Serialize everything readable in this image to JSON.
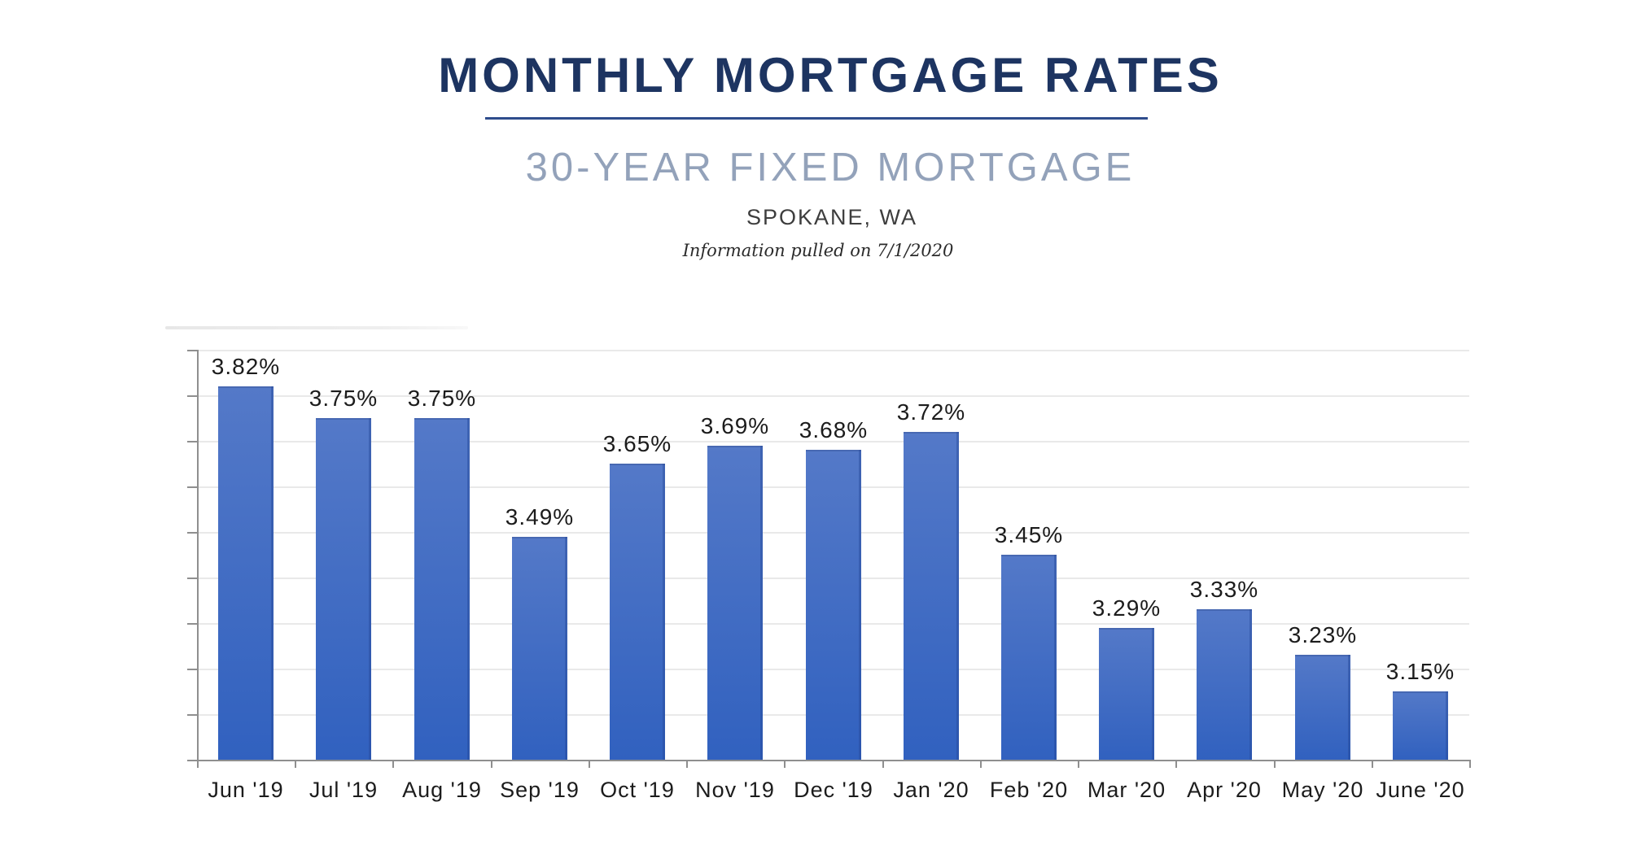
{
  "header": {
    "title": "MONTHLY MORTGAGE RATES",
    "subtitle": "30-YEAR FIXED MORTGAGE",
    "location": "SPOKANE, WA",
    "note": "Information pulled on 7/1/2020"
  },
  "colors": {
    "title_navy": "#1d3461",
    "underline_blue": "#2e4c8c",
    "subtitle_gray_blue": "#93a2ba",
    "location_dark": "#3d3d3d",
    "note_dark": "#2b2b2b",
    "bar_gradient_top": "#5479c8",
    "bar_gradient_bottom": "#3161bf",
    "bar_edge": "#2d59b2",
    "axis_gray": "#8f8f8f",
    "gridline_gray": "#e9e9e9",
    "label_dark": "#1c1c1c"
  },
  "chart_data": {
    "type": "bar",
    "title": "MONTHLY MORTGAGE RATES",
    "subtitle": "30-YEAR FIXED MORTGAGE",
    "categories": [
      "Jun '19",
      "Jul '19",
      "Aug '19",
      "Sep '19",
      "Oct '19",
      "Nov '19",
      "Dec '19",
      "Jan '20",
      "Feb '20",
      "Mar '20",
      "Apr '20",
      "May '20",
      "June '20"
    ],
    "values": [
      3.82,
      3.75,
      3.75,
      3.49,
      3.65,
      3.69,
      3.68,
      3.72,
      3.45,
      3.29,
      3.33,
      3.23,
      3.15
    ],
    "value_labels": [
      "3.82%",
      "3.75%",
      "3.75%",
      "3.49%",
      "3.65%",
      "3.69%",
      "3.68%",
      "3.72%",
      "3.45%",
      "3.29%",
      "3.33%",
      "3.23%",
      "3.15%"
    ],
    "xlabel": "",
    "ylabel": "",
    "ylim": [
      3.0,
      3.9
    ],
    "grid_step": 0.1,
    "grid": true,
    "legend": false,
    "y_tick_labels_visible": false
  }
}
